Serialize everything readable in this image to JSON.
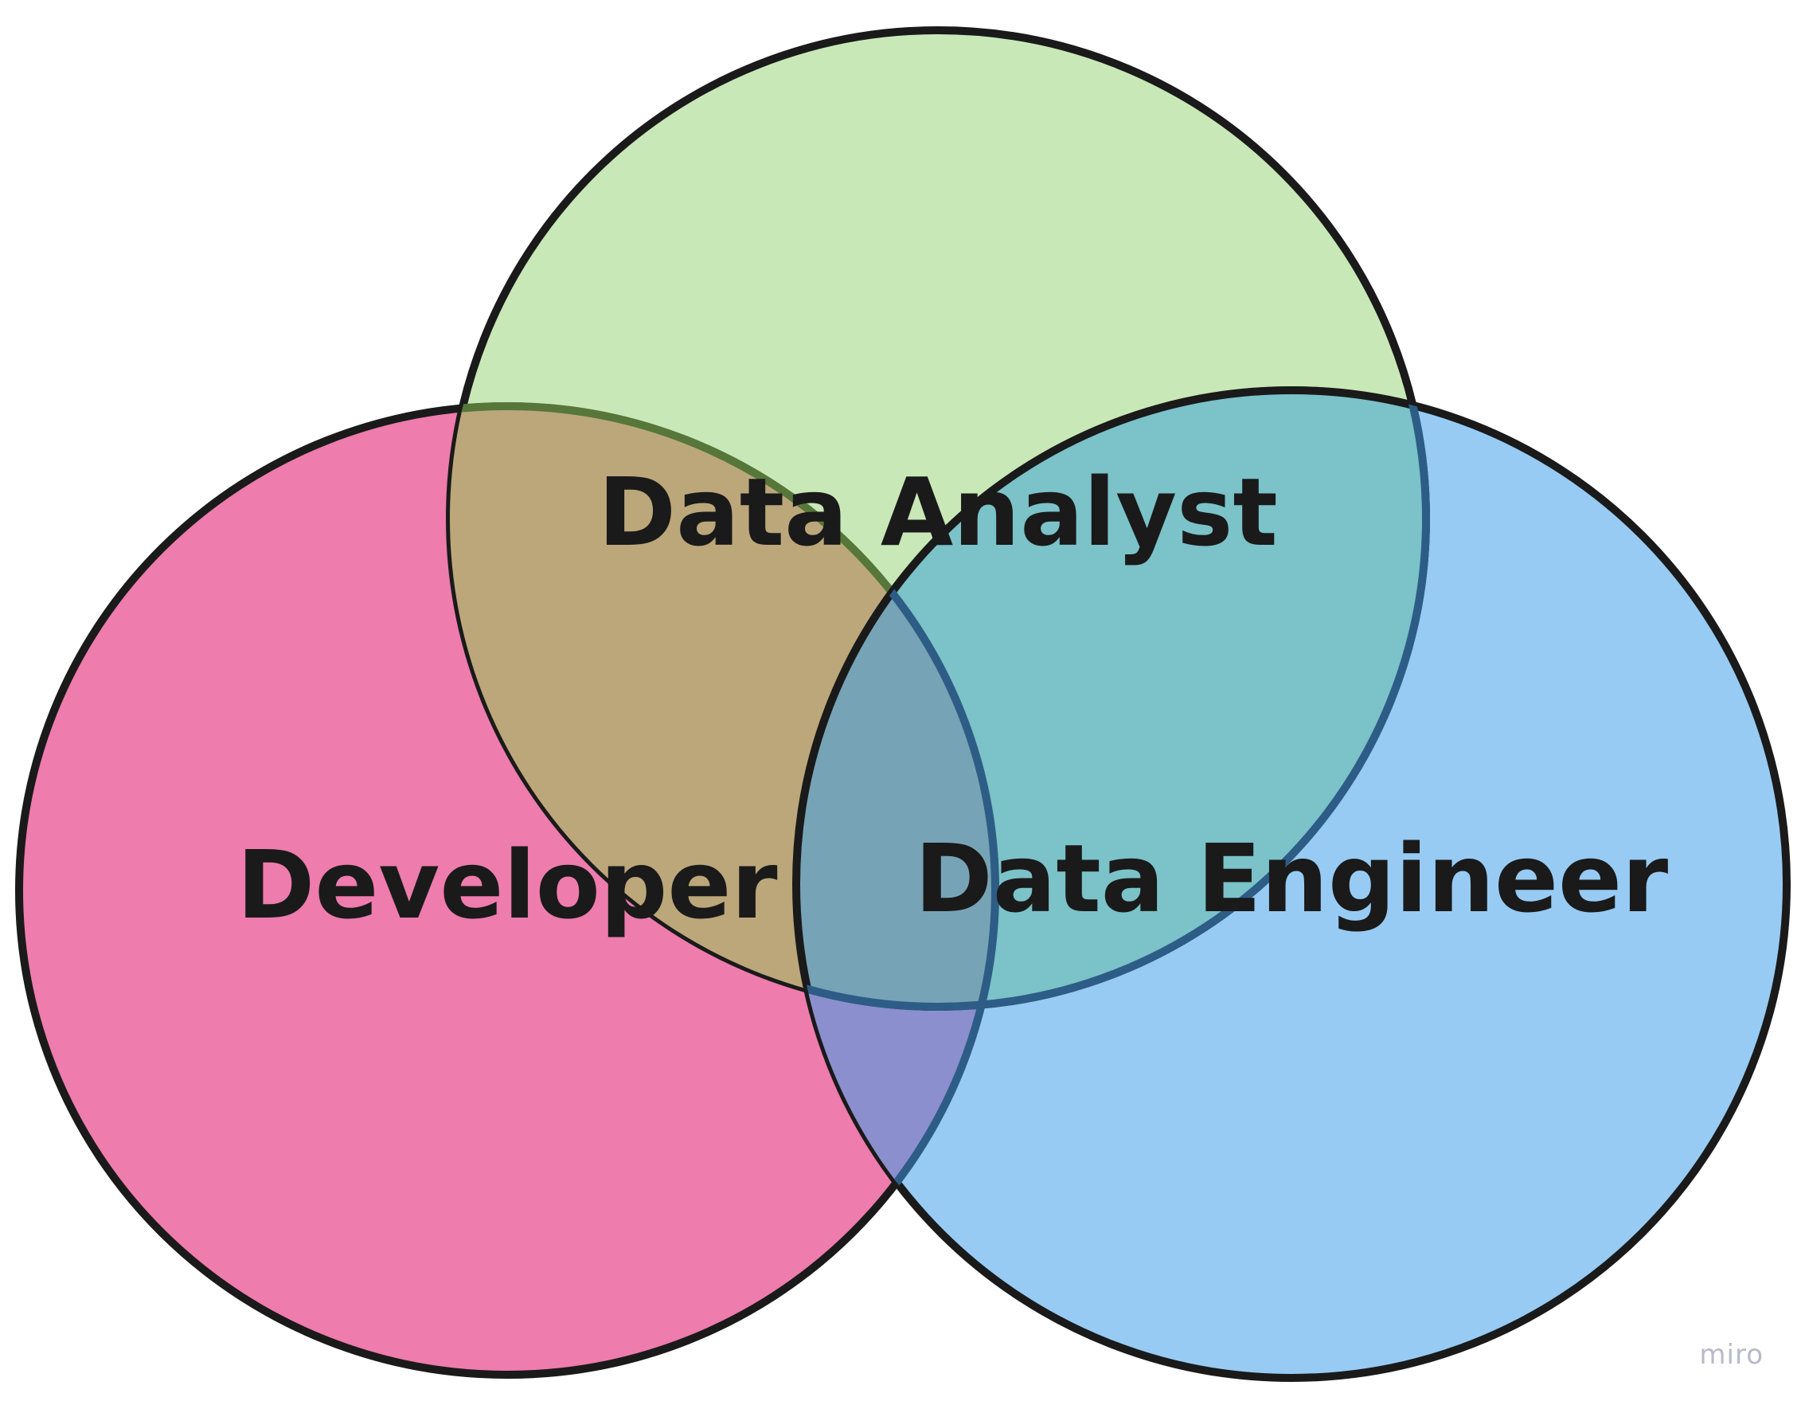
{
  "sets": [
    {
      "key": "developer",
      "label": "Developer",
      "fill": "#ee7cad",
      "stroke": "#1a1a1a"
    },
    {
      "key": "data_engineer",
      "label": "Data Engineer",
      "fill": "#97cbf3",
      "stroke": "#1a1a1a"
    },
    {
      "key": "data_analyst",
      "label": "Data Analyst",
      "fill": "#b9e39d",
      "stroke": "#1a1a1a"
    }
  ],
  "watermark": "miro"
}
